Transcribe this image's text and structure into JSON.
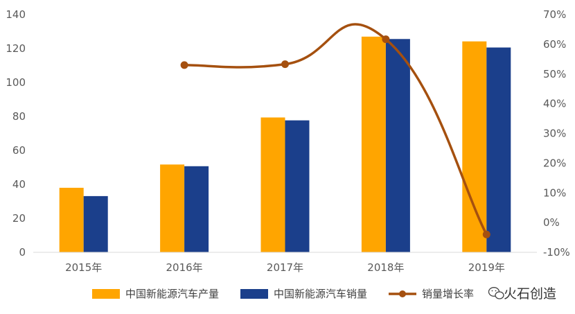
{
  "chart_data": {
    "type": "bar",
    "categories": [
      "2015年",
      "2016年",
      "2017年",
      "2018年",
      "2019年"
    ],
    "series": [
      {
        "name": "中国新能源汽车产量",
        "kind": "bar",
        "axis": "left",
        "color": "#FFA500",
        "values": [
          38,
          51.7,
          79.4,
          127,
          124.2
        ]
      },
      {
        "name": "中国新能源汽车销量",
        "kind": "bar",
        "axis": "left",
        "color": "#1B3F8B",
        "values": [
          33.1,
          50.7,
          77.7,
          125.6,
          120.6
        ]
      },
      {
        "name": "销量增长率",
        "kind": "line",
        "axis": "right",
        "color": "#A5500F",
        "values": [
          null,
          53,
          53.3,
          61.7,
          -4
        ]
      }
    ],
    "y_left": {
      "min": 0,
      "max": 140,
      "step": 20,
      "ticks": [
        "0",
        "20",
        "40",
        "60",
        "80",
        "100",
        "120",
        "140"
      ]
    },
    "y_right": {
      "min": -10,
      "max": 70,
      "step": 10,
      "ticks": [
        "-10%",
        "0%",
        "10%",
        "20%",
        "30%",
        "40%",
        "50%",
        "60%",
        "70%"
      ]
    },
    "grid": false,
    "legend_position": "bottom"
  },
  "watermark": {
    "text": "火石创造",
    "icon": "wechat-icon"
  }
}
